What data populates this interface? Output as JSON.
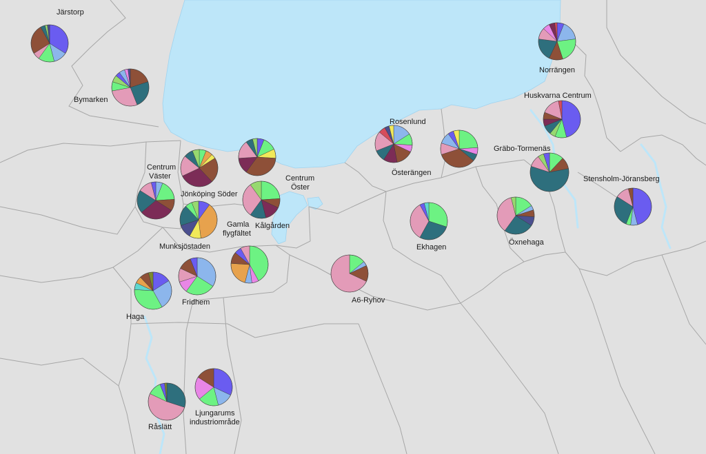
{
  "colors": {
    "land": "#e1e1e1",
    "water": "#bde6f9",
    "border": "#a6a6a6",
    "palette": {
      "blue": "#6a5cf0",
      "lightblue": "#8cb6ec",
      "green": "#6df283",
      "pink": "#e39bb8",
      "teal": "#2e6f7d",
      "brown": "#8e5038",
      "plum": "#7c2c57",
      "orange": "#e7a24d",
      "magenta": "#e886e6",
      "yellow": "#f1e95a",
      "navy": "#4b4f8f",
      "lime": "#97d96f",
      "red": "#d64c5b",
      "olive": "#7d8b2f",
      "cyan": "#5fd7cf"
    }
  },
  "districts": [
    {
      "id": "jarstorp",
      "name": "Järstorp",
      "slices": [
        [
          "blue",
          0.34
        ],
        [
          "lightblue",
          0.12
        ],
        [
          "green",
          0.14
        ],
        [
          "pink",
          0.06
        ],
        [
          "brown",
          0.26
        ],
        [
          "teal",
          0.04
        ],
        [
          "lime",
          0.02
        ],
        [
          "navy",
          0.02
        ]
      ]
    },
    {
      "id": "bymarken",
      "name": "Bymarken",
      "slices": [
        [
          "brown",
          0.2
        ],
        [
          "teal",
          0.24
        ],
        [
          "pink",
          0.28
        ],
        [
          "green",
          0.08
        ],
        [
          "lime",
          0.06
        ],
        [
          "blue",
          0.04
        ],
        [
          "lightblue",
          0.05
        ],
        [
          "magenta",
          0.03
        ],
        [
          "navy",
          0.02
        ]
      ]
    },
    {
      "id": "norrangen",
      "name": "Norrängen",
      "slices": [
        [
          "blue",
          0.06
        ],
        [
          "lightblue",
          0.17
        ],
        [
          "green",
          0.22
        ],
        [
          "brown",
          0.12
        ],
        [
          "teal",
          0.2
        ],
        [
          "pink",
          0.1
        ],
        [
          "magenta",
          0.06
        ],
        [
          "plum",
          0.05
        ],
        [
          "red",
          0.02
        ]
      ]
    },
    {
      "id": "huskvarna-centrum",
      "name": "Huskvarna Centrum",
      "slices": [
        [
          "blue",
          0.46
        ],
        [
          "green",
          0.1
        ],
        [
          "lime",
          0.05
        ],
        [
          "teal",
          0.08
        ],
        [
          "plum",
          0.06
        ],
        [
          "brown",
          0.06
        ],
        [
          "pink",
          0.16
        ],
        [
          "red",
          0.03
        ]
      ]
    },
    {
      "id": "rosenlund",
      "name": "Rosenlund",
      "slices": [
        [
          "lightblue",
          0.16
        ],
        [
          "green",
          0.1
        ],
        [
          "magenta",
          0.06
        ],
        [
          "brown",
          0.15
        ],
        [
          "plum",
          0.12
        ],
        [
          "teal",
          0.1
        ],
        [
          "pink",
          0.17
        ],
        [
          "red",
          0.06
        ],
        [
          "navy",
          0.04
        ],
        [
          "yellow",
          0.04
        ]
      ]
    },
    {
      "id": "osterangen",
      "name": "Österängen",
      "slices": [
        [
          "green",
          0.24
        ],
        [
          "magenta",
          0.06
        ],
        [
          "teal",
          0.06
        ],
        [
          "brown",
          0.34
        ],
        [
          "pink",
          0.1
        ],
        [
          "lightblue",
          0.1
        ],
        [
          "blue",
          0.05
        ],
        [
          "yellow",
          0.05
        ]
      ]
    },
    {
      "id": "grabo-tormenas",
      "name": "Gräbo-Tormenäs",
      "slices": [
        [
          "green",
          0.12
        ],
        [
          "brown",
          0.1
        ],
        [
          "teal",
          0.58
        ],
        [
          "pink",
          0.1
        ],
        [
          "lime",
          0.05
        ],
        [
          "blue",
          0.05
        ]
      ]
    },
    {
      "id": "stensholm",
      "name": "Stensholm-Jöransberg",
      "slices": [
        [
          "blue",
          0.46
        ],
        [
          "lightblue",
          0.06
        ],
        [
          "green",
          0.04
        ],
        [
          "teal",
          0.28
        ],
        [
          "pink",
          0.12
        ],
        [
          "brown",
          0.04
        ]
      ]
    },
    {
      "id": "centrum-vaster",
      "name": "Centrum\nVäster",
      "slices": [
        [
          "lightblue",
          0.06
        ],
        [
          "green",
          0.18
        ],
        [
          "brown",
          0.1
        ],
        [
          "plum",
          0.3
        ],
        [
          "teal",
          0.2
        ],
        [
          "pink",
          0.12
        ],
        [
          "blue",
          0.04
        ]
      ]
    },
    {
      "id": "jonkoping-soder-pie",
      "name": "",
      "slices": [
        [
          "green",
          0.06
        ],
        [
          "orange",
          0.06
        ],
        [
          "yellow",
          0.04
        ],
        [
          "brown",
          0.22
        ],
        [
          "plum",
          0.3
        ],
        [
          "pink",
          0.18
        ],
        [
          "teal",
          0.08
        ],
        [
          "lime",
          0.06
        ]
      ]
    },
    {
      "id": "centrum-oster-pie",
      "name": "",
      "slices": [
        [
          "blue",
          0.06
        ],
        [
          "green",
          0.12
        ],
        [
          "yellow",
          0.08
        ],
        [
          "brown",
          0.34
        ],
        [
          "plum",
          0.14
        ],
        [
          "pink",
          0.16
        ],
        [
          "teal",
          0.06
        ],
        [
          "lime",
          0.04
        ]
      ]
    },
    {
      "id": "kalgarden",
      "name": "Kålgården",
      "slices": [
        [
          "green",
          0.24
        ],
        [
          "brown",
          0.08
        ],
        [
          "plum",
          0.14
        ],
        [
          "teal",
          0.14
        ],
        [
          "pink",
          0.3
        ],
        [
          "lime",
          0.1
        ]
      ]
    },
    {
      "id": "munksjostaden",
      "name": "Munksjöstaden",
      "slices": [
        [
          "blue",
          0.1
        ],
        [
          "orange",
          0.38
        ],
        [
          "yellow",
          0.1
        ],
        [
          "navy",
          0.12
        ],
        [
          "teal",
          0.18
        ],
        [
          "green",
          0.06
        ],
        [
          "lime",
          0.06
        ]
      ]
    },
    {
      "id": "gamla-flygfaltet",
      "name": "Gamla\nflygfältet",
      "slices": [
        [
          "green",
          0.42
        ],
        [
          "magenta",
          0.06
        ],
        [
          "lightblue",
          0.06
        ],
        [
          "orange",
          0.22
        ],
        [
          "brown",
          0.1
        ],
        [
          "blue",
          0.06
        ],
        [
          "pink",
          0.08
        ]
      ]
    },
    {
      "id": "fridhem",
      "name": "Fridhem",
      "slices": [
        [
          "lightblue",
          0.34
        ],
        [
          "green",
          0.26
        ],
        [
          "magenta",
          0.1
        ],
        [
          "pink",
          0.12
        ],
        [
          "brown",
          0.12
        ],
        [
          "blue",
          0.06
        ]
      ]
    },
    {
      "id": "haga",
      "name": "Haga",
      "slices": [
        [
          "blue",
          0.16
        ],
        [
          "lightblue",
          0.26
        ],
        [
          "green",
          0.34
        ],
        [
          "cyan",
          0.06
        ],
        [
          "orange",
          0.06
        ],
        [
          "brown",
          0.08
        ],
        [
          "olive",
          0.04
        ]
      ]
    },
    {
      "id": "ekhagen",
      "name": "Ekhagen",
      "slices": [
        [
          "green",
          0.3
        ],
        [
          "teal",
          0.28
        ],
        [
          "pink",
          0.34
        ],
        [
          "blue",
          0.04
        ],
        [
          "cyan",
          0.04
        ]
      ]
    },
    {
      "id": "oxnehaga",
      "name": "Öxnehaga",
      "slices": [
        [
          "green",
          0.16
        ],
        [
          "lightblue",
          0.04
        ],
        [
          "brown",
          0.06
        ],
        [
          "navy",
          0.08
        ],
        [
          "teal",
          0.26
        ],
        [
          "pink",
          0.36
        ],
        [
          "lime",
          0.04
        ]
      ]
    },
    {
      "id": "a6-ryhov",
      "name": "A6-Ryhov",
      "slices": [
        [
          "green",
          0.14
        ],
        [
          "lightblue",
          0.04
        ],
        [
          "brown",
          0.14
        ],
        [
          "pink",
          0.68
        ]
      ]
    },
    {
      "id": "ljungarum",
      "name": "Ljungarums\nindustriområde",
      "slices": [
        [
          "blue",
          0.32
        ],
        [
          "lightblue",
          0.14
        ],
        [
          "green",
          0.18
        ],
        [
          "magenta",
          0.2
        ],
        [
          "brown",
          0.16
        ]
      ]
    },
    {
      "id": "raslatt",
      "name": "Råslätt",
      "slices": [
        [
          "teal",
          0.3
        ],
        [
          "pink",
          0.52
        ],
        [
          "green",
          0.12
        ],
        [
          "blue",
          0.04
        ],
        [
          "olive",
          0.02
        ]
      ]
    }
  ],
  "labels": {
    "jarstorp": "Järstorp",
    "bymarken": "Bymarken",
    "norrangen": "Norrängen",
    "huskvarna_centrum": "Huskvarna Centrum",
    "rosenlund": "Rosenlund",
    "osterangen": "Österängen",
    "grabo_tormenas": "Gräbo-Tormenäs",
    "stensholm": "Stensholm-Jöransberg",
    "centrum_vaster_1": "Centrum",
    "centrum_vaster_2": "Väster",
    "jonkoping_soder": "Jönköping Söder",
    "centrum_oster_1": "Centrum",
    "centrum_oster_2": "Öster",
    "kalgarden": "Kålgården",
    "gamla_flygfaltet_1": "Gamla",
    "gamla_flygfaltet_2": "flygfältet",
    "munksjostaden": "Munksjöstaden",
    "fridhem": "Fridhem",
    "haga": "Haga",
    "ekhagen": "Ekhagen",
    "oxnehaga": "Öxnehaga",
    "a6_ryhov": "A6-Ryhov",
    "ljungarum_1": "Ljungarums",
    "ljungarum_2": "industriområde",
    "raslatt": "Råslätt"
  }
}
